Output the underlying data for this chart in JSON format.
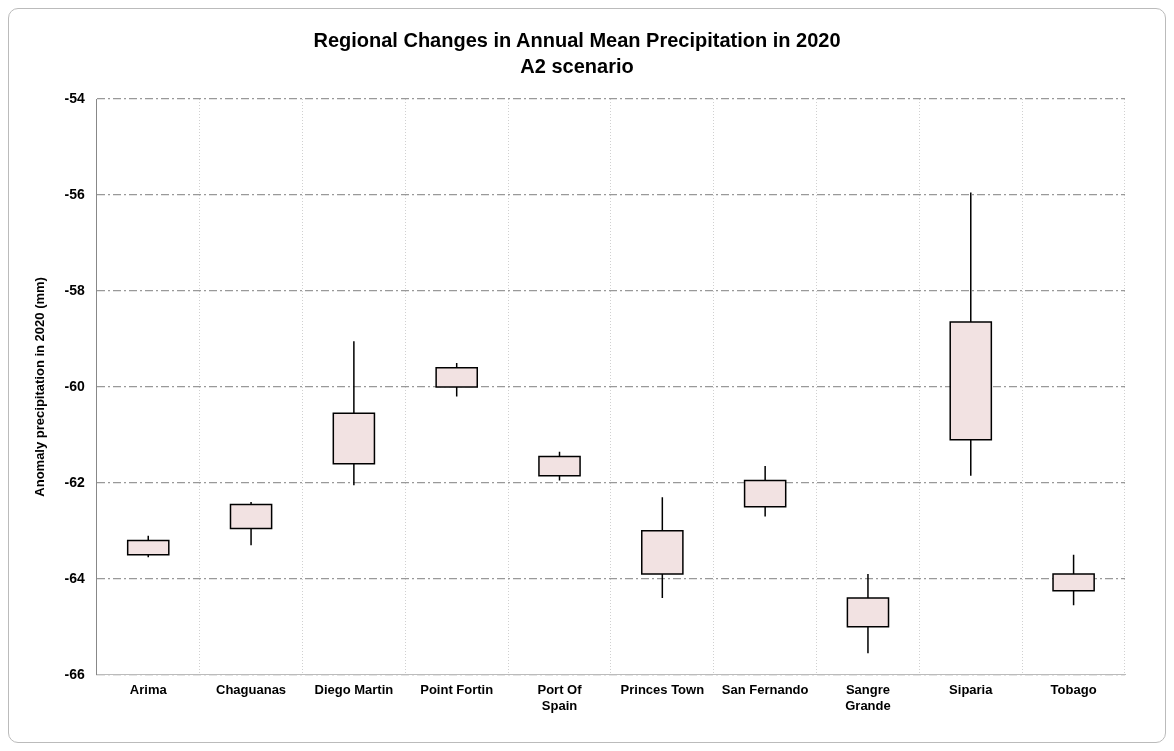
{
  "chart_data": {
    "type": "candlestick",
    "title": "Regional Changes in Annual Mean Precipitation in 2020",
    "subtitle": "A2 scenario",
    "ylabel": "Anomaly precipitation in 2020 (mm)",
    "categories": [
      "Arima",
      "Chaguanas",
      "Diego Martin",
      "Point Fortin",
      "Port Of Spain",
      "Princes Town",
      "San Fernando",
      "Sangre Grande",
      "Siparia",
      "Tobago"
    ],
    "ohlc": [
      [
        -63.5,
        -63.1,
        -63.55,
        -63.2
      ],
      [
        -62.95,
        -62.4,
        -63.3,
        -62.45
      ],
      [
        -61.6,
        -59.05,
        -62.05,
        -60.55
      ],
      [
        -60.0,
        -59.5,
        -60.2,
        -59.6
      ],
      [
        -61.85,
        -61.35,
        -61.95,
        -61.45
      ],
      [
        -63.9,
        -62.3,
        -64.4,
        -63.0
      ],
      [
        -62.5,
        -61.65,
        -62.7,
        -61.95
      ],
      [
        -65.0,
        -63.9,
        -65.55,
        -64.4
      ],
      [
        -61.1,
        -55.95,
        -61.85,
        -58.65
      ],
      [
        -64.25,
        -63.5,
        -64.55,
        -63.9
      ]
    ],
    "color": "#f2e2e2",
    "ylim": [
      -66,
      -54
    ],
    "yticks": [
      -66,
      -64,
      -62,
      -60,
      -58,
      -56,
      -54
    ],
    "grid": true
  }
}
